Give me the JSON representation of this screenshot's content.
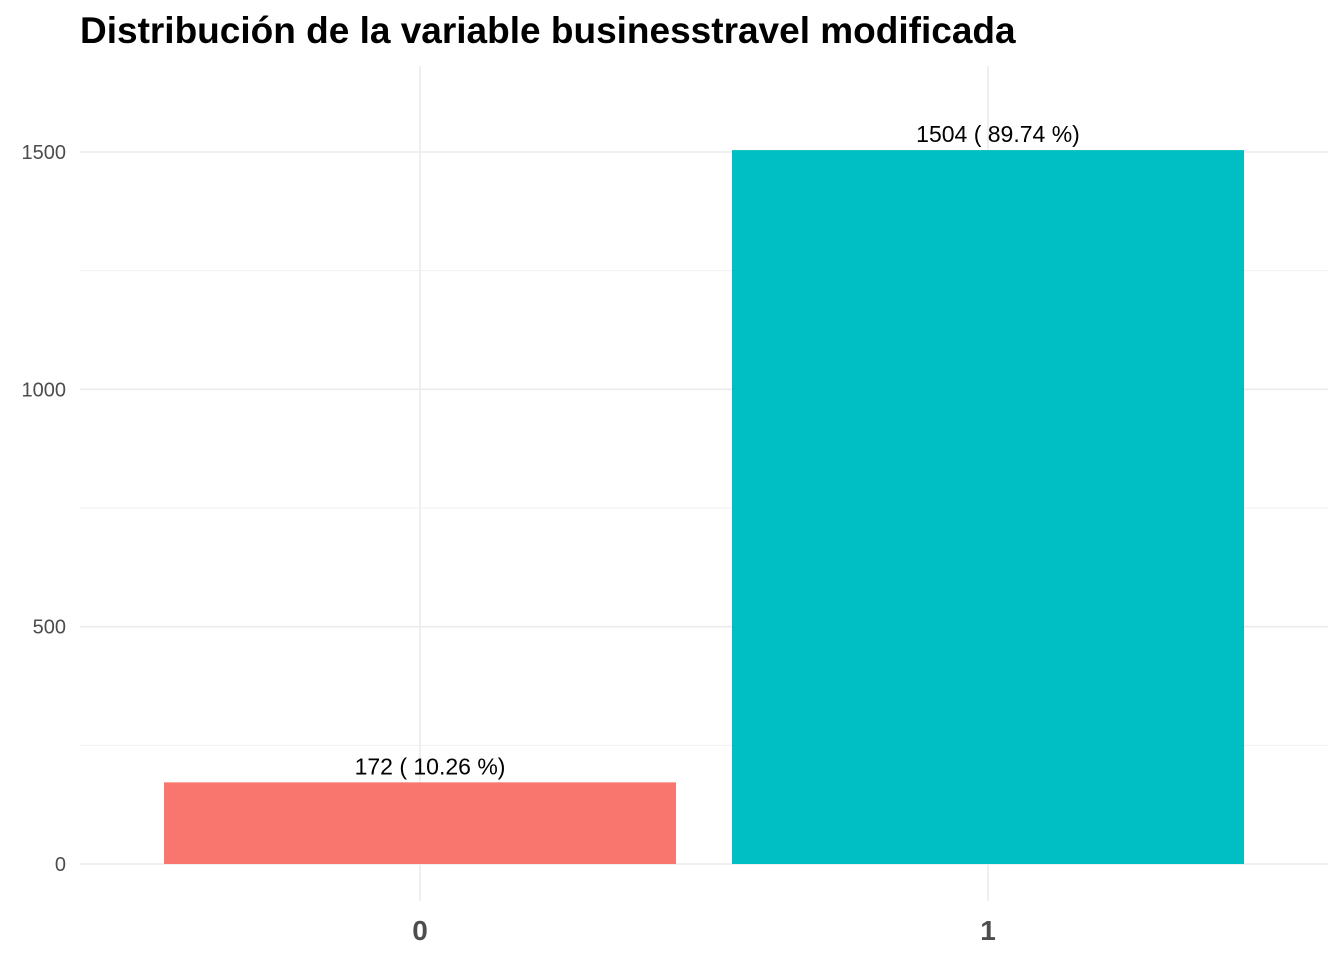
{
  "chart_data": {
    "type": "bar",
    "title": "Distribución de la variable businesstravel modificada",
    "xlabel": "",
    "ylabel": "",
    "categories": [
      "0",
      "1"
    ],
    "values": [
      172,
      1504
    ],
    "data_labels": [
      "172  ( 10.26 %)",
      "1504  ( 89.74 %)"
    ],
    "colors": [
      "#F8766D",
      "#00BFC4"
    ],
    "ylim": [
      0,
      1680
    ],
    "yticks": [
      0,
      500,
      1000,
      1500
    ],
    "grid": true,
    "legend": "none"
  }
}
